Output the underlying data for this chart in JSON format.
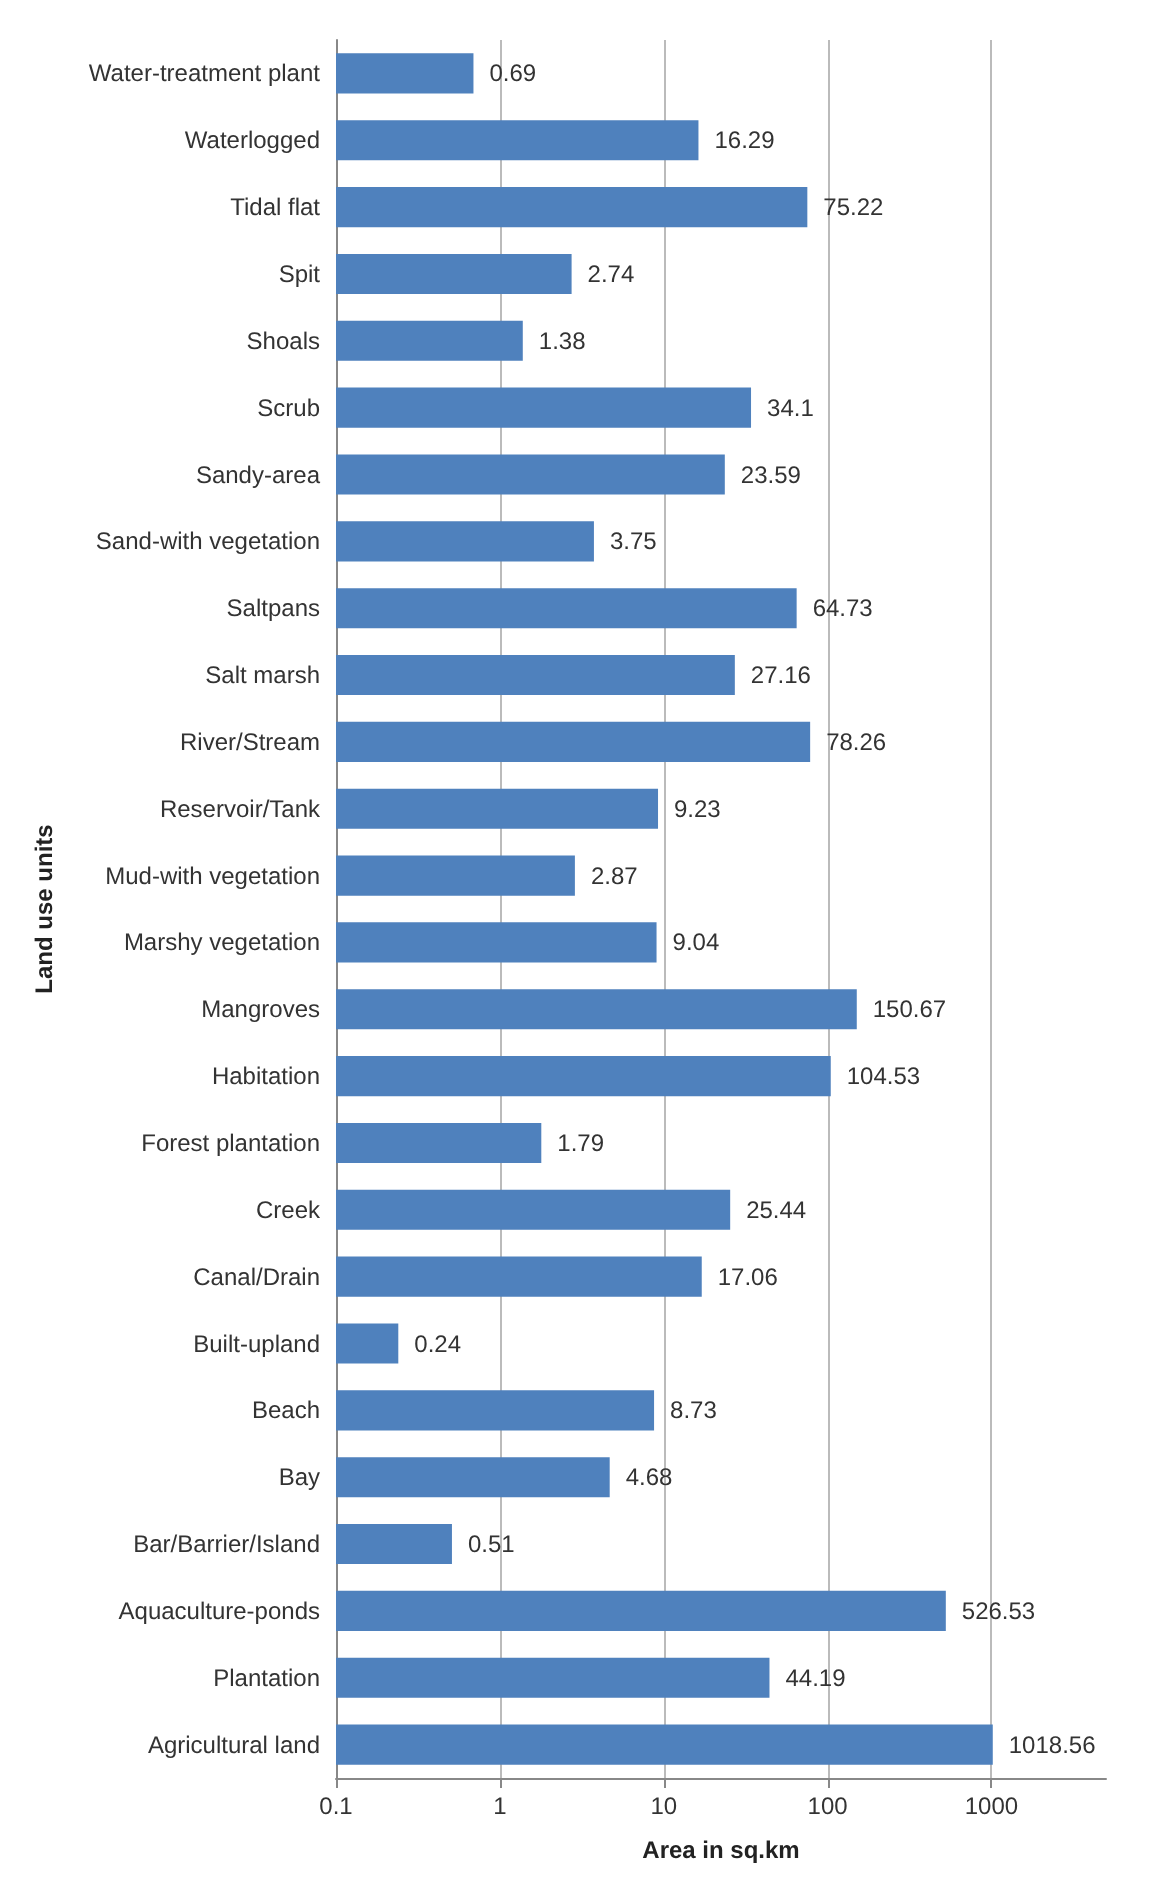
{
  "chart_data": {
    "type": "bar",
    "orientation": "horizontal",
    "log": "x",
    "xlabel": "Area in sq.km",
    "ylabel": "Land use units",
    "categories": [
      "Water-treatment plant",
      "Waterlogged",
      "Tidal flat",
      "Spit",
      "Shoals",
      "Scrub",
      "Sandy-area",
      "Sand-with vegetation",
      "Saltpans",
      "Salt marsh",
      "River/Stream",
      "Reservoir/Tank",
      "Mud-with vegetation",
      "Marshy vegetation",
      "Mangroves",
      "Habitation",
      "Forest plantation",
      "Creek",
      "Canal/Drain",
      "Built-upland",
      "Beach",
      "Bay",
      "Bar/Barrier/Island",
      "Aquaculture-ponds",
      "Plantation",
      "Agricultural land"
    ],
    "values": [
      0.69,
      16.29,
      75.22,
      2.74,
      1.38,
      34.1,
      23.59,
      3.75,
      64.73,
      27.16,
      78.26,
      9.23,
      2.87,
      9.04,
      150.67,
      104.53,
      1.79,
      25.44,
      17.06,
      0.24,
      8.73,
      4.68,
      0.51,
      526.53,
      44.19,
      1018.56
    ],
    "color": "#4f81bd",
    "data_labels": true,
    "xlim": [
      0.1,
      5000
    ],
    "xticks": [
      0.1,
      1,
      10,
      100,
      1000
    ],
    "grid": "x"
  }
}
